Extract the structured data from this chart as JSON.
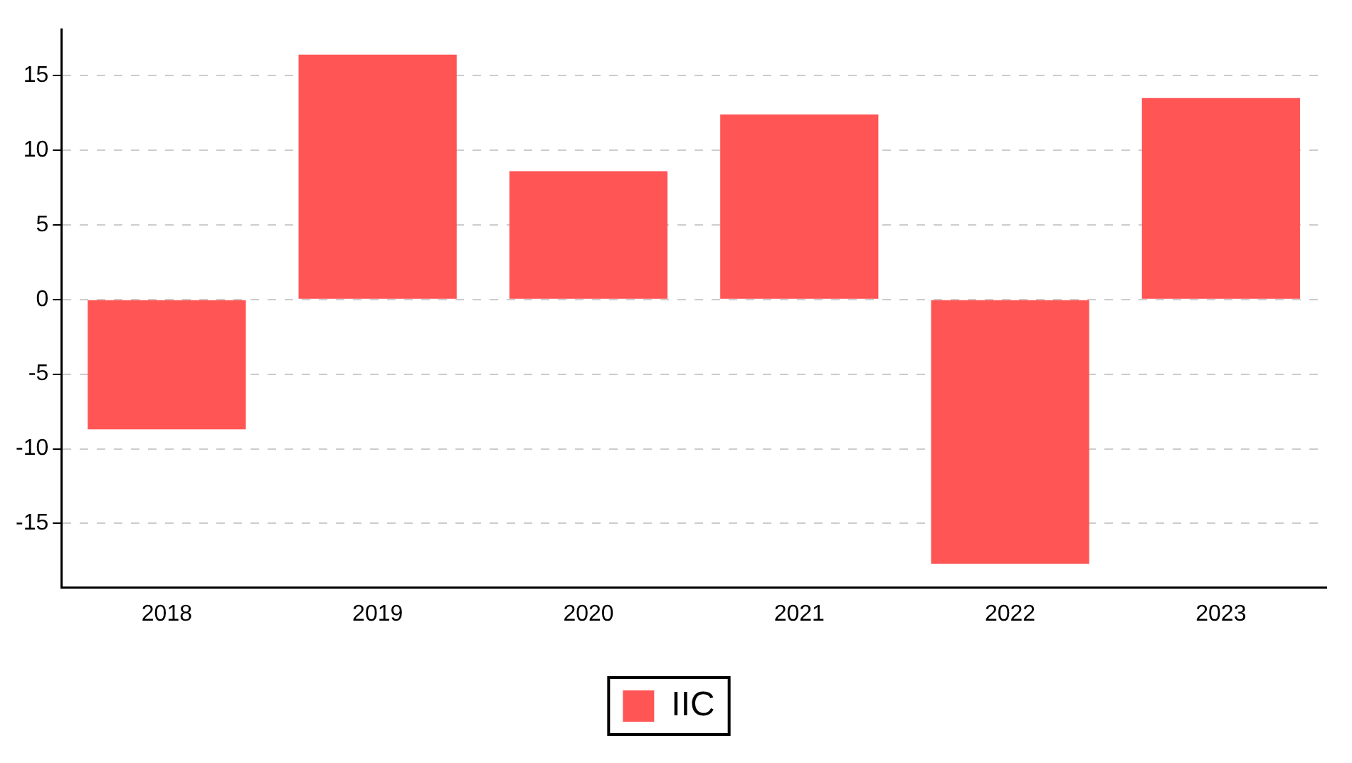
{
  "chart_data": {
    "type": "bar",
    "categories": [
      "2018",
      "2019",
      "2020",
      "2021",
      "2022",
      "2023"
    ],
    "series": [
      {
        "name": "IIC",
        "color": "#ff5555",
        "values": [
          -8.7,
          16.4,
          8.6,
          12.4,
          -17.7,
          13.5
        ]
      }
    ],
    "ylim": [
      -19.3,
      18.1
    ],
    "yticks": [
      -15,
      -10,
      -5,
      0,
      5,
      10,
      15
    ],
    "grid": "y",
    "legend": "bottom"
  }
}
